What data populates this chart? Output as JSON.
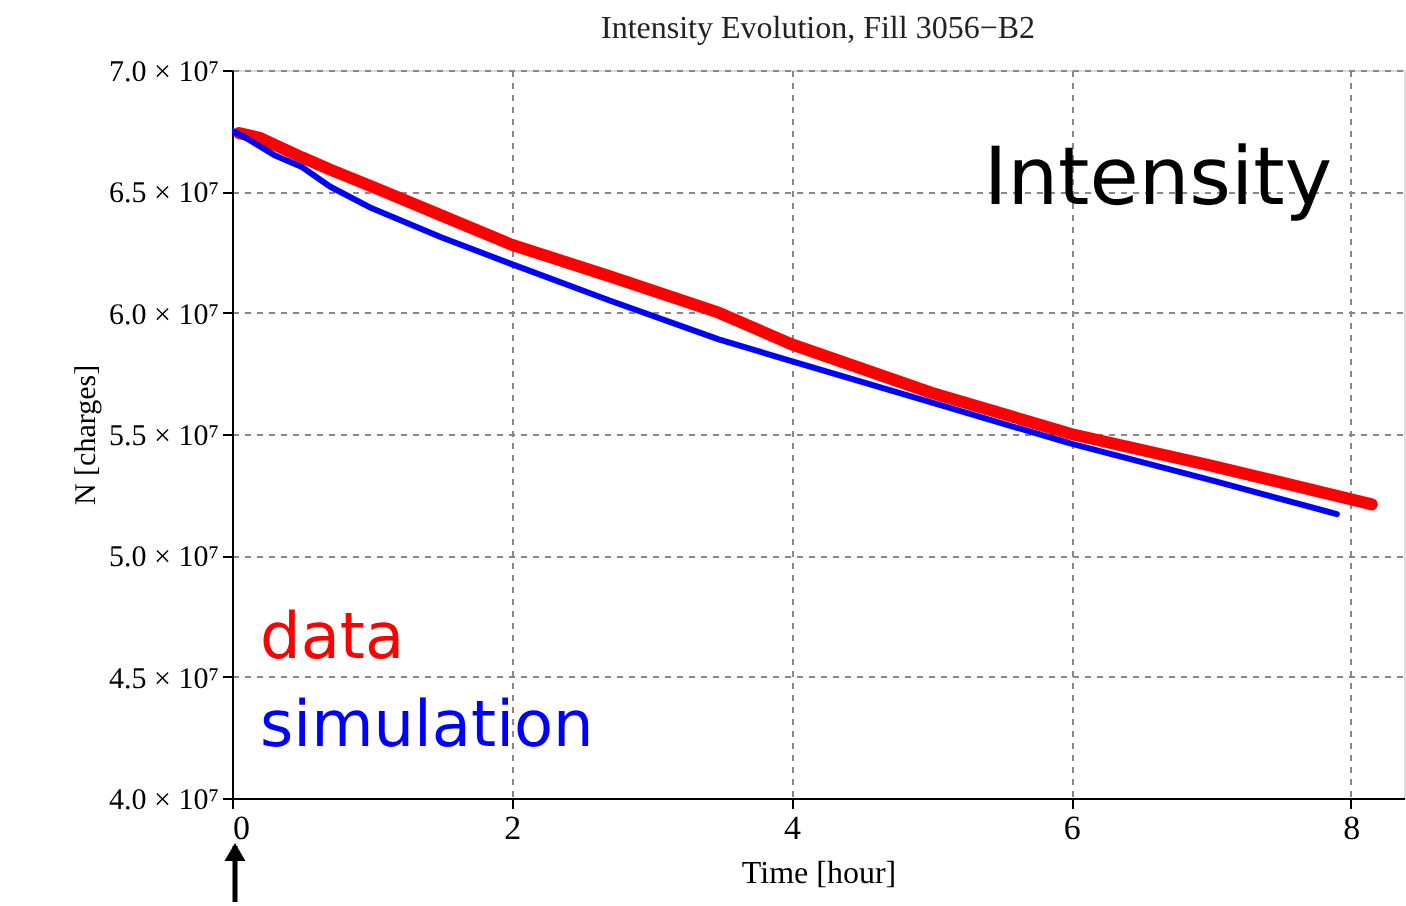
{
  "chart_data": {
    "type": "line",
    "title": "Intensity Evolution, Fill 3056−B2",
    "xlabel": "Time [hour]",
    "ylabel": "N [charges]",
    "annotations": [
      "Intensity"
    ],
    "series": [
      {
        "name": "data",
        "color": "#ff0000",
        "x": [
          0.05,
          0.2,
          0.35,
          0.5,
          0.7,
          1.0,
          1.5,
          2.0,
          2.7,
          3.48,
          4.0,
          5.0,
          6.0,
          7.0,
          8.15
        ],
        "values": [
          67400000,
          67200000,
          66800000,
          66400000,
          65900000,
          65200000,
          64000000,
          62800000,
          61500000,
          60000000,
          58700000,
          56700000,
          55000000,
          53700000,
          52100000
        ]
      },
      {
        "name": "simulation",
        "color": "#0000ff",
        "x": [
          0.0,
          0.1,
          0.3,
          0.5,
          0.7,
          1.0,
          1.5,
          2.0,
          2.7,
          3.48,
          4.0,
          5.0,
          6.0,
          7.0,
          7.9
        ],
        "values": [
          67500000,
          67200000,
          66500000,
          66000000,
          65200000,
          64300000,
          63100000,
          62000000,
          60500000,
          58900000,
          58000000,
          56300000,
          54600000,
          53100000,
          51700000
        ]
      }
    ],
    "xlim": [
      0,
      8.38
    ],
    "xticks": [
      0,
      2,
      4,
      6,
      8
    ],
    "ylim": [
      40000000,
      70000000
    ],
    "yticks": [
      {
        "value": 40000000,
        "label": "4.0 × 10⁷"
      },
      {
        "value": 45000000,
        "label": "4.5 × 10⁷"
      },
      {
        "value": 50000000,
        "label": "5.0 × 10⁷"
      },
      {
        "value": 55000000,
        "label": "5.5 × 10⁷"
      },
      {
        "value": 60000000,
        "label": "6.0 × 10⁷"
      },
      {
        "value": 65000000,
        "label": "6.5 × 10⁷"
      },
      {
        "value": 70000000,
        "label": "7.0 × 10⁷"
      }
    ],
    "grid": true,
    "legend": "bottom left",
    "marker": "none",
    "line_style": "solid"
  }
}
